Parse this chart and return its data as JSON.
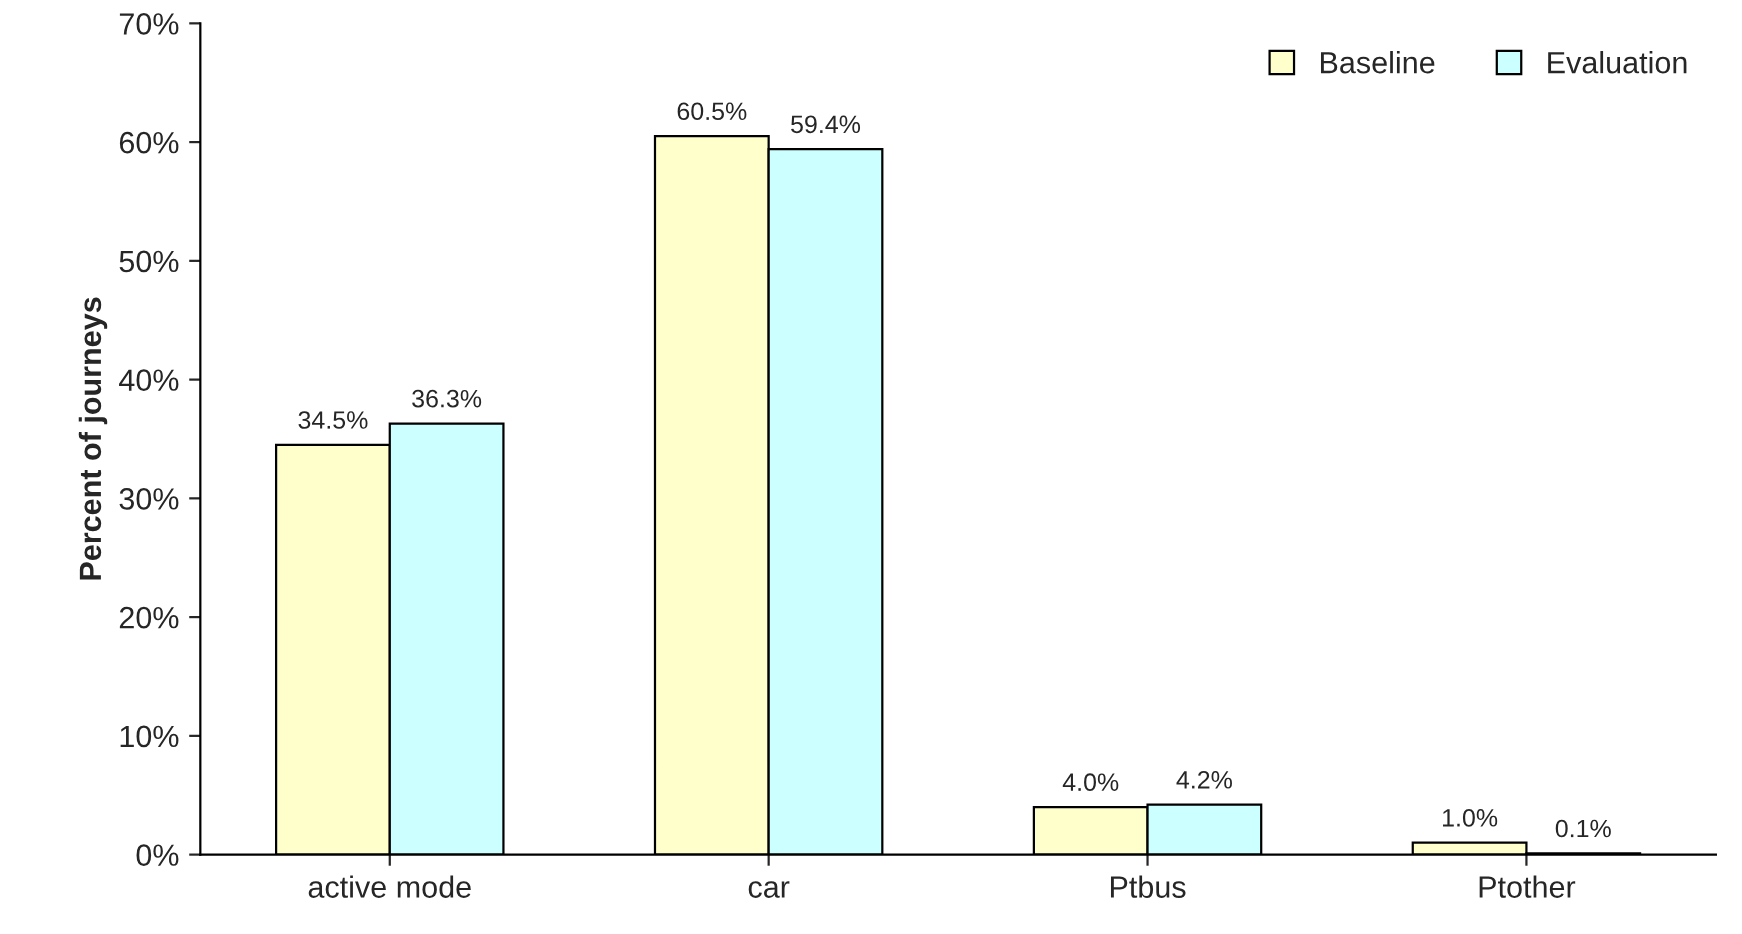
{
  "chart_data": {
    "type": "bar",
    "ylabel": "Percent of journeys",
    "categories": [
      "active mode",
      "car",
      "Ptbus",
      "Ptother"
    ],
    "series": [
      {
        "name": "Baseline",
        "color": "#ffffcc",
        "values": [
          34.5,
          60.5,
          4.0,
          1.0
        ],
        "value_labels": [
          "34.5%",
          "60.5%",
          "4.0%",
          "1.0%"
        ]
      },
      {
        "name": "Evaluation",
        "color": "#ccffff",
        "values": [
          36.3,
          59.4,
          4.2,
          0.1
        ],
        "value_labels": [
          "36.3%",
          "59.4%",
          "4.2%",
          "0.1%"
        ]
      }
    ],
    "ylim": [
      0,
      70
    ],
    "yticks": [
      {
        "value": 0,
        "label": "0%"
      },
      {
        "value": 10,
        "label": "10%"
      },
      {
        "value": 20,
        "label": "20%"
      },
      {
        "value": 30,
        "label": "30%"
      },
      {
        "value": 40,
        "label": "40%"
      },
      {
        "value": 50,
        "label": "50%"
      },
      {
        "value": 60,
        "label": "60%"
      },
      {
        "value": 70,
        "label": "70%"
      }
    ],
    "legend": "top right",
    "grid": false
  }
}
